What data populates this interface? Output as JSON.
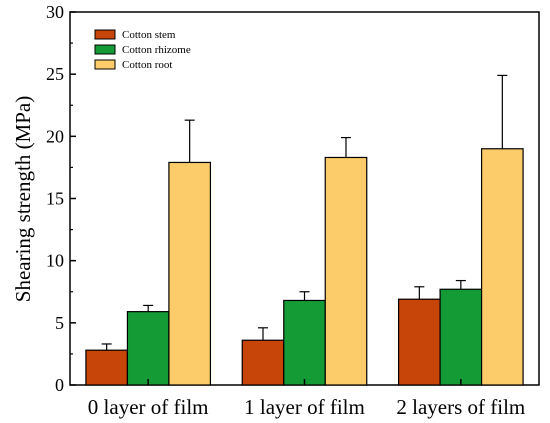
{
  "chart_data": {
    "type": "bar",
    "title": "",
    "xlabel": "",
    "ylabel": "Shearing strength (MPa)",
    "ylim": [
      0,
      30
    ],
    "yticks": [
      0,
      5,
      10,
      15,
      20,
      25,
      30
    ],
    "grid": false,
    "legend_position": "top-left",
    "categories": [
      "0 layer of film",
      "1 layer of film",
      "2 layers of film"
    ],
    "series": [
      {
        "name": "Cotton stem",
        "color": "#C8450A",
        "values": [
          2.8,
          3.6,
          6.9
        ],
        "errors": [
          0.5,
          1.0,
          1.0
        ]
      },
      {
        "name": "Cotton rhizome",
        "color": "#149B35",
        "values": [
          5.9,
          6.8,
          7.7
        ],
        "errors": [
          0.5,
          0.7,
          0.7
        ]
      },
      {
        "name": "Cotton root",
        "color": "#FCCB6A",
        "values": [
          17.9,
          18.3,
          19.0
        ],
        "errors": [
          3.4,
          1.6,
          5.9
        ]
      }
    ]
  }
}
